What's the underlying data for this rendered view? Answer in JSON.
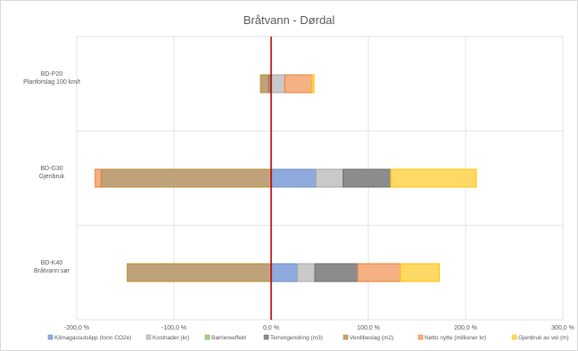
{
  "chart_data": {
    "type": "bar",
    "orientation": "horizontal",
    "stacked": true,
    "title": "Bråtvann - Dørdal",
    "xlabel": "",
    "ylabel": "",
    "xlim": [
      -200,
      300
    ],
    "x_ticks": [
      -200,
      -100,
      0,
      100,
      200,
      300
    ],
    "x_tick_labels": [
      "-200,0 %",
      "-100,0 %",
      "0,0 %",
      "100,0 %",
      "200,0 %",
      "300,0 %"
    ],
    "grid": true,
    "legend_position": "bottom",
    "reference_line": {
      "x": 0,
      "color": "#c00000"
    },
    "categories": [
      {
        "line1": "BD-P20",
        "line2": "Planforslag 100 km/t"
      },
      {
        "line1": "BD-G30",
        "line2": "Gjenbruk"
      },
      {
        "line1": "BD-K40",
        "line2": "Bråtvann sør"
      }
    ],
    "series": [
      {
        "name": "Klimagassutslipp (tonn CO2e)",
        "color": "#8faadc",
        "border": "#6f8fc9",
        "values": [
          0,
          46,
          27
        ]
      },
      {
        "name": "Kostnader (kr)",
        "color": "#c9c9c9",
        "border": "#a6a6a6",
        "values": [
          14,
          28,
          18
        ]
      },
      {
        "name": "Barriereeffekt",
        "color": "#a9d18e",
        "border": "#70ad47",
        "values": [
          0,
          0,
          0
        ]
      },
      {
        "name": "Terrengendring (m3)",
        "color": "#8c8c8c",
        "border": "#6b6b6b",
        "values": [
          -3,
          49,
          44
        ]
      },
      {
        "name": "Verdibeslag (m2)",
        "color": "#bfa27a",
        "border": "#c08a2a",
        "values": [
          -8,
          -175,
          -148
        ]
      },
      {
        "name": "Netto nytte (millioner kr)",
        "color": "#f4b183",
        "border": "#ed7d31",
        "values": [
          28,
          -6,
          44
        ]
      },
      {
        "name": "Gjenbruk av vei (m)",
        "color": "#ffd966",
        "border": "#ffc000",
        "values": [
          2,
          88,
          40
        ]
      }
    ]
  }
}
